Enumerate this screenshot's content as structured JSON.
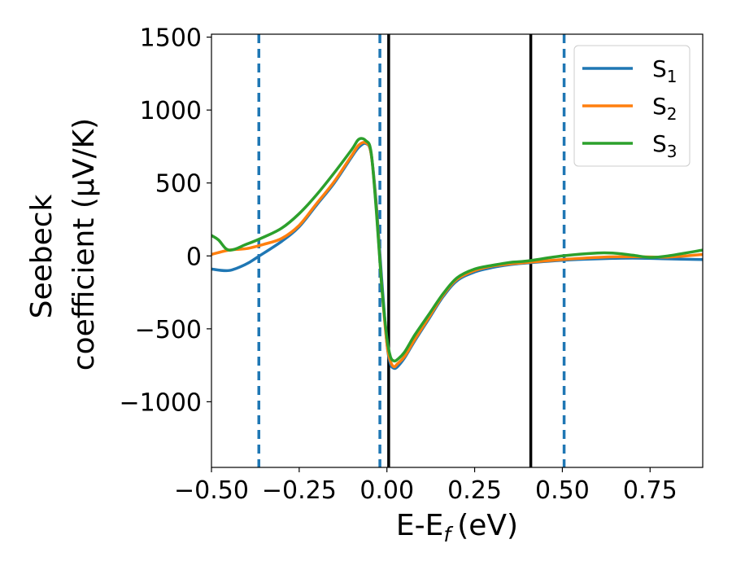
{
  "chart_data": {
    "type": "line",
    "xlabel": "E-E",
    "xlabel_sub": "f",
    "xlabel_unit": "(eV)",
    "ylabel_line1": "Seebeck",
    "ylabel_line2": "coefficient  (μV/K)",
    "xlim": [
      -0.5,
      0.9
    ],
    "ylim": [
      -1450,
      1520
    ],
    "xticks": [
      -0.5,
      -0.25,
      0.0,
      0.25,
      0.5,
      0.75
    ],
    "xtick_labels": [
      "−0.50",
      "−0.25",
      "0.00",
      "0.25",
      "0.50",
      "0.75"
    ],
    "yticks": [
      1500,
      1000,
      500,
      0,
      -500,
      -1000
    ],
    "ytick_labels": [
      "1500",
      "1000",
      "500",
      "0",
      "−500",
      "−1000"
    ],
    "grid": false,
    "legend_position": "top-right",
    "vlines_solid": [
      0.005,
      0.41
    ],
    "vlines_dashed": [
      -0.365,
      -0.02,
      0.505
    ],
    "vline_solid_color": "#000000",
    "vline_dashed_color": "#1f77b4",
    "series": [
      {
        "name": "S",
        "name_sub": "1",
        "color": "#1f77b4",
        "x": [
          -0.5,
          -0.45,
          -0.4,
          -0.37,
          -0.3,
          -0.25,
          -0.2,
          -0.15,
          -0.1,
          -0.08,
          -0.06,
          -0.045,
          -0.03,
          -0.015,
          0.0,
          0.01,
          0.02,
          0.03,
          0.05,
          0.08,
          0.12,
          0.16,
          0.2,
          0.25,
          0.3,
          0.35,
          0.4,
          0.5,
          0.6,
          0.7,
          0.8,
          0.9
        ],
        "y": [
          -90,
          -100,
          -55,
          -10,
          100,
          200,
          350,
          500,
          680,
          745,
          770,
          700,
          350,
          -150,
          -600,
          -740,
          -770,
          -760,
          -700,
          -580,
          -430,
          -280,
          -170,
          -110,
          -80,
          -60,
          -48,
          -30,
          -20,
          -15,
          -20,
          -25
        ]
      },
      {
        "name": "S",
        "name_sub": "2",
        "color": "#ff7f0e",
        "x": [
          -0.5,
          -0.45,
          -0.4,
          -0.35,
          -0.3,
          -0.25,
          -0.2,
          -0.15,
          -0.1,
          -0.08,
          -0.06,
          -0.045,
          -0.03,
          -0.015,
          0.0,
          0.01,
          0.02,
          0.03,
          0.05,
          0.08,
          0.12,
          0.16,
          0.2,
          0.25,
          0.3,
          0.35,
          0.4,
          0.5,
          0.6,
          0.7,
          0.8,
          0.9
        ],
        "y": [
          10,
          40,
          50,
          80,
          120,
          210,
          360,
          510,
          690,
          760,
          775,
          700,
          320,
          -200,
          -600,
          -720,
          -760,
          -740,
          -690,
          -570,
          -420,
          -270,
          -160,
          -100,
          -70,
          -55,
          -45,
          -25,
          -10,
          -5,
          -8,
          10
        ]
      },
      {
        "name": "S",
        "name_sub": "3",
        "color": "#2ca02c",
        "x": [
          -0.5,
          -0.48,
          -0.45,
          -0.4,
          -0.35,
          -0.3,
          -0.25,
          -0.2,
          -0.15,
          -0.1,
          -0.08,
          -0.06,
          -0.045,
          -0.03,
          -0.015,
          0.0,
          0.01,
          0.02,
          0.03,
          0.05,
          0.08,
          0.12,
          0.16,
          0.2,
          0.25,
          0.3,
          0.35,
          0.4,
          0.5,
          0.6,
          0.65,
          0.7,
          0.75,
          0.8,
          0.9
        ],
        "y": [
          140,
          110,
          40,
          80,
          130,
          190,
          290,
          420,
          570,
          730,
          800,
          790,
          710,
          300,
          -200,
          -560,
          -690,
          -720,
          -710,
          -660,
          -540,
          -400,
          -260,
          -150,
          -90,
          -65,
          -45,
          -35,
          0,
          20,
          18,
          5,
          -10,
          0,
          40
        ]
      }
    ]
  }
}
